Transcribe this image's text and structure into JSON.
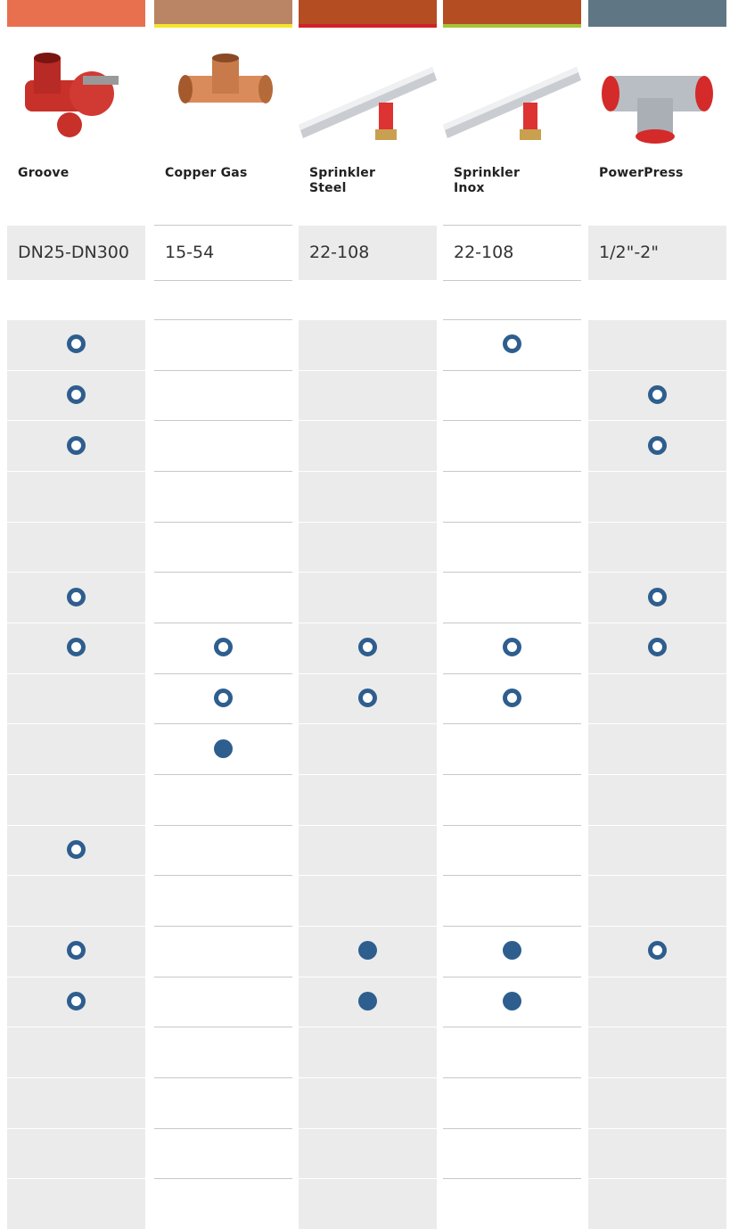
{
  "columns": [
    {
      "name": "Groove",
      "size": "DN25-DN300",
      "header_color": "#e8704f",
      "accent_color": null,
      "shaded": true
    },
    {
      "name": "Copper Gas",
      "size": "15-54",
      "header_color": "#b98564",
      "accent_color": "#f5e52a",
      "shaded": false
    },
    {
      "name": "Sprinkler\nSteel",
      "size": "22-108",
      "header_color": "#b54d22",
      "accent_color": "#d2202a",
      "shaded": true
    },
    {
      "name": "Sprinkler\nInox",
      "size": "22-108",
      "header_color": "#b54d22",
      "accent_color": "#a5c436",
      "shaded": false
    },
    {
      "name": "PowerPress",
      "size": "1/2\"-2\"",
      "header_color": "#5f7784",
      "accent_color": null,
      "shaded": true
    }
  ],
  "rows": [
    [
      "ring",
      null,
      null,
      "ring",
      null
    ],
    [
      "ring",
      null,
      null,
      null,
      "ring"
    ],
    [
      "ring",
      null,
      null,
      null,
      "ring"
    ],
    [
      null,
      null,
      null,
      null,
      null
    ],
    [
      null,
      null,
      null,
      null,
      null
    ],
    [
      "ring",
      null,
      null,
      null,
      "ring"
    ],
    [
      "ring",
      "ring",
      "ring",
      "ring",
      "ring"
    ],
    [
      null,
      "ring",
      "ring",
      "ring",
      null
    ],
    [
      null,
      "dot",
      null,
      null,
      null
    ],
    [
      null,
      null,
      null,
      null,
      null
    ],
    [
      "ring",
      null,
      null,
      null,
      null
    ],
    [
      null,
      null,
      null,
      null,
      null
    ],
    [
      "ring",
      null,
      "dot",
      "dot",
      "ring"
    ],
    [
      "ring",
      null,
      "dot",
      "dot",
      null
    ],
    [
      null,
      null,
      null,
      null,
      null
    ],
    [
      null,
      null,
      null,
      null,
      null
    ],
    [
      null,
      null,
      null,
      null,
      null
    ],
    [
      null,
      null,
      null,
      null,
      null
    ]
  ]
}
